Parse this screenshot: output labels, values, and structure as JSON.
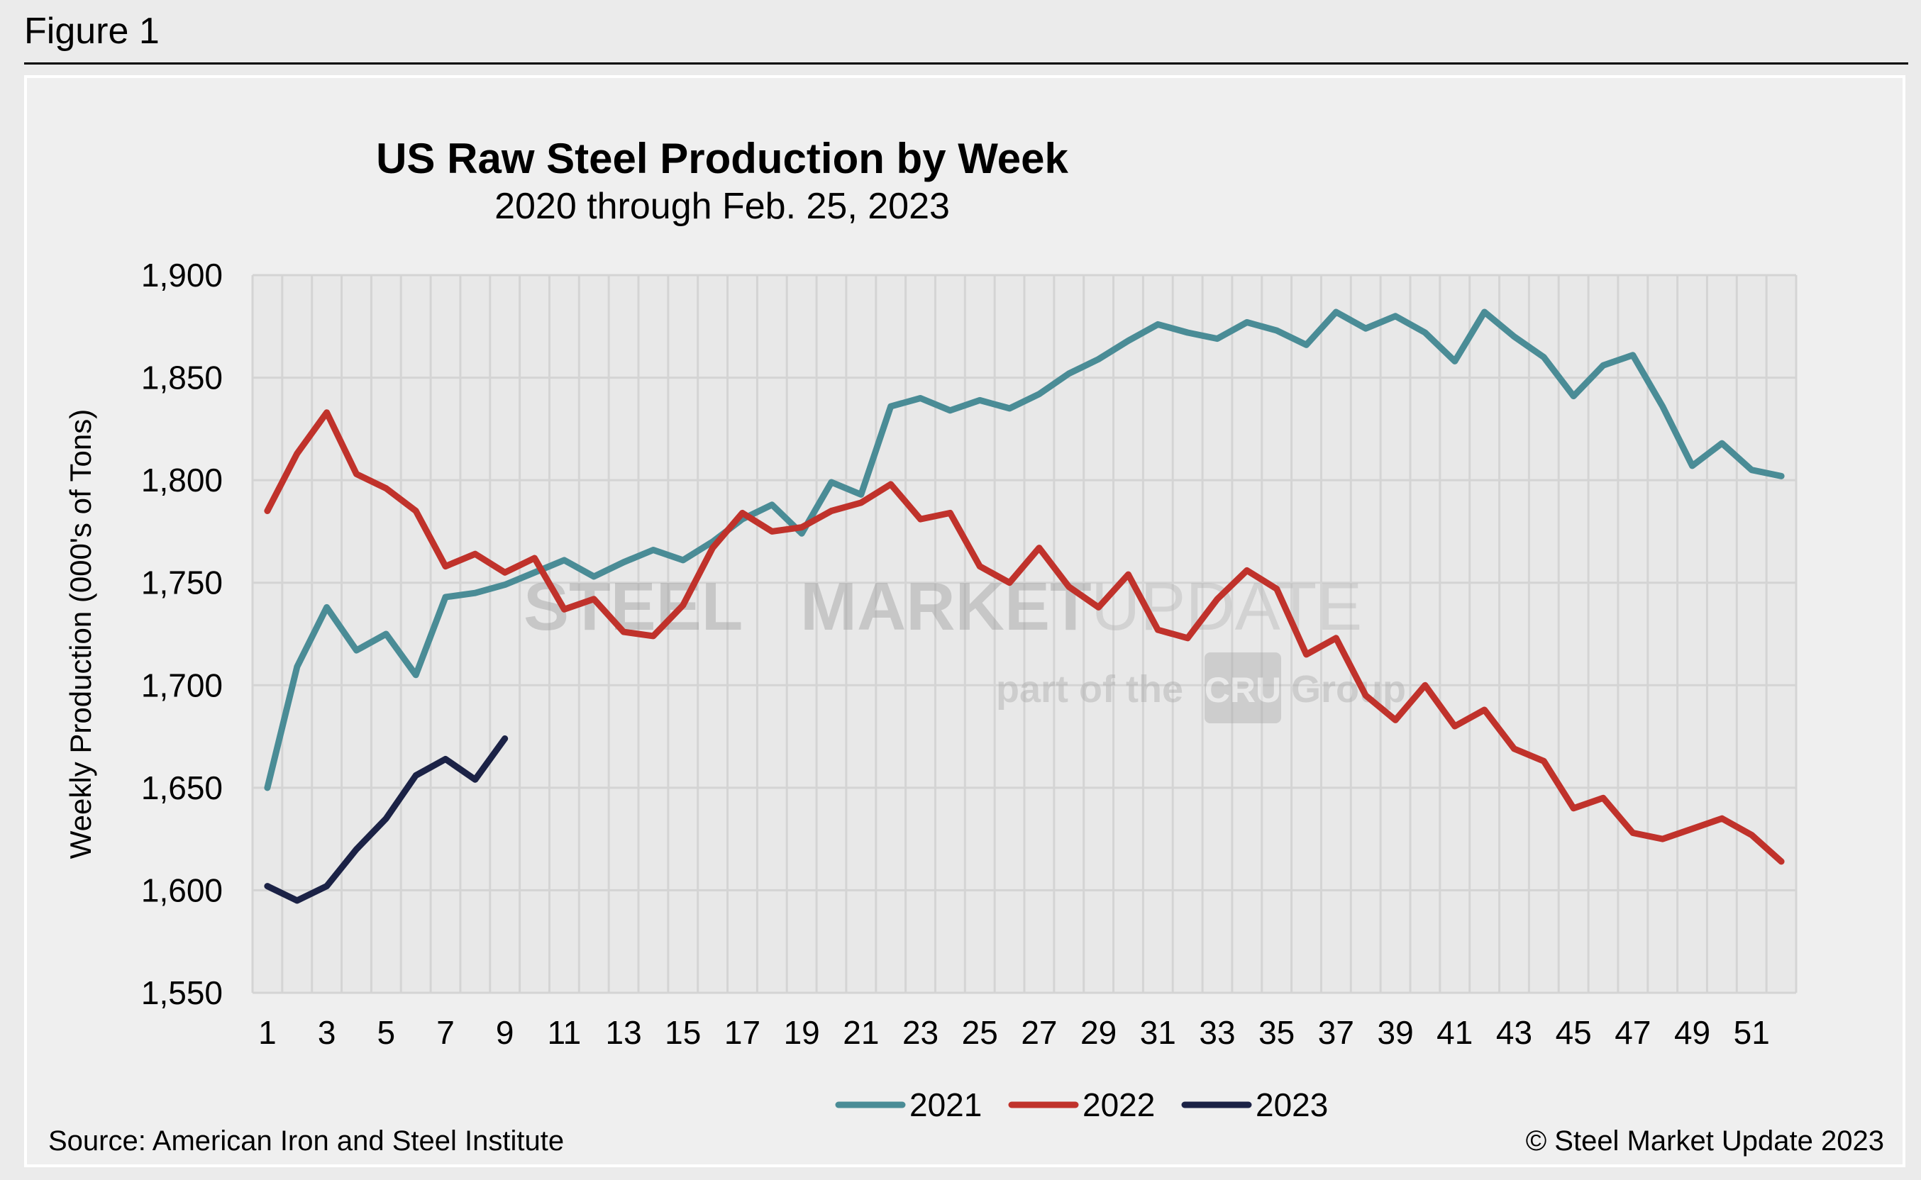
{
  "figure_label": "Figure 1",
  "source": "Source: American Iron and Steel Institute",
  "copyright": "© Steel Market Update 2023",
  "watermark": {
    "line1_a": "STEEL",
    "line1_b": "MARKET",
    "line1_c": "UPDATE",
    "line2_a": "part of the",
    "line2_b": "CRU",
    "line2_c": "Group"
  },
  "chart_data": {
    "type": "line",
    "title": "US Raw Steel Production by Week",
    "subtitle": "2020 through Feb. 25, 2023",
    "xlabel": "",
    "ylabel": "Weekly Production (000's of Tons)",
    "xlim": [
      1,
      52
    ],
    "ylim": [
      1550,
      1900
    ],
    "ytick_values": [
      1550,
      1600,
      1650,
      1700,
      1750,
      1800,
      1850,
      1900
    ],
    "ytick_labels": [
      "1,550",
      "1,600",
      "1,650",
      "1,700",
      "1,750",
      "1,800",
      "1,850",
      "1,900"
    ],
    "xtick_values": [
      1,
      3,
      5,
      7,
      9,
      11,
      13,
      15,
      17,
      19,
      21,
      23,
      25,
      27,
      29,
      31,
      33,
      35,
      37,
      39,
      41,
      43,
      45,
      47,
      49,
      51
    ],
    "xtick_labels": [
      "1",
      "3",
      "5",
      "7",
      "9",
      "11",
      "13",
      "15",
      "17",
      "19",
      "21",
      "23",
      "25",
      "27",
      "29",
      "31",
      "33",
      "35",
      "37",
      "39",
      "41",
      "43",
      "45",
      "47",
      "49",
      "51"
    ],
    "grid": true,
    "legend_position": "bottom",
    "series": [
      {
        "name": "2021",
        "color": "#4a8c96",
        "x": [
          1,
          2,
          3,
          4,
          5,
          6,
          7,
          8,
          9,
          10,
          11,
          12,
          13,
          14,
          15,
          16,
          17,
          18,
          19,
          20,
          21,
          22,
          23,
          24,
          25,
          26,
          27,
          28,
          29,
          30,
          31,
          32,
          33,
          34,
          35,
          36,
          37,
          38,
          39,
          40,
          41,
          42,
          43,
          44,
          45,
          46,
          47,
          48,
          49,
          50,
          51,
          52
        ],
        "values": [
          1650,
          1709,
          1738,
          1717,
          1725,
          1705,
          1743,
          1745,
          1749,
          1755,
          1761,
          1753,
          1760,
          1766,
          1761,
          1770,
          1781,
          1788,
          1774,
          1799,
          1793,
          1836,
          1840,
          1834,
          1839,
          1835,
          1842,
          1852,
          1859,
          1868,
          1876,
          1872,
          1869,
          1877,
          1873,
          1866,
          1882,
          1874,
          1880,
          1872,
          1858,
          1882,
          1870,
          1860,
          1841,
          1856,
          1861,
          1836,
          1807,
          1818,
          1805,
          1802
        ]
      },
      {
        "name": "2022",
        "color": "#c0322b",
        "x": [
          1,
          2,
          3,
          4,
          5,
          6,
          7,
          8,
          9,
          10,
          11,
          12,
          13,
          14,
          15,
          16,
          17,
          18,
          19,
          20,
          21,
          22,
          23,
          24,
          25,
          26,
          27,
          28,
          29,
          30,
          31,
          32,
          33,
          34,
          35,
          36,
          37,
          38,
          39,
          40,
          41,
          42,
          43,
          44,
          45,
          46,
          47,
          48,
          49,
          50,
          51,
          52
        ],
        "values": [
          1785,
          1813,
          1833,
          1803,
          1796,
          1785,
          1758,
          1764,
          1755,
          1762,
          1737,
          1742,
          1726,
          1724,
          1739,
          1767,
          1784,
          1775,
          1777,
          1785,
          1789,
          1798,
          1781,
          1784,
          1758,
          1750,
          1767,
          1748,
          1738,
          1754,
          1727,
          1723,
          1742,
          1756,
          1747,
          1715,
          1723,
          1695,
          1683,
          1700,
          1680,
          1688,
          1669,
          1663,
          1640,
          1645,
          1628,
          1625,
          1630,
          1635,
          1627,
          1614
        ]
      },
      {
        "name": "2023",
        "color": "#1b2246",
        "x": [
          1,
          2,
          3,
          4,
          5,
          6,
          7,
          8,
          9
        ],
        "values": [
          1602,
          1595,
          1602,
          1620,
          1635,
          1656,
          1664,
          1654,
          1674
        ]
      }
    ]
  }
}
